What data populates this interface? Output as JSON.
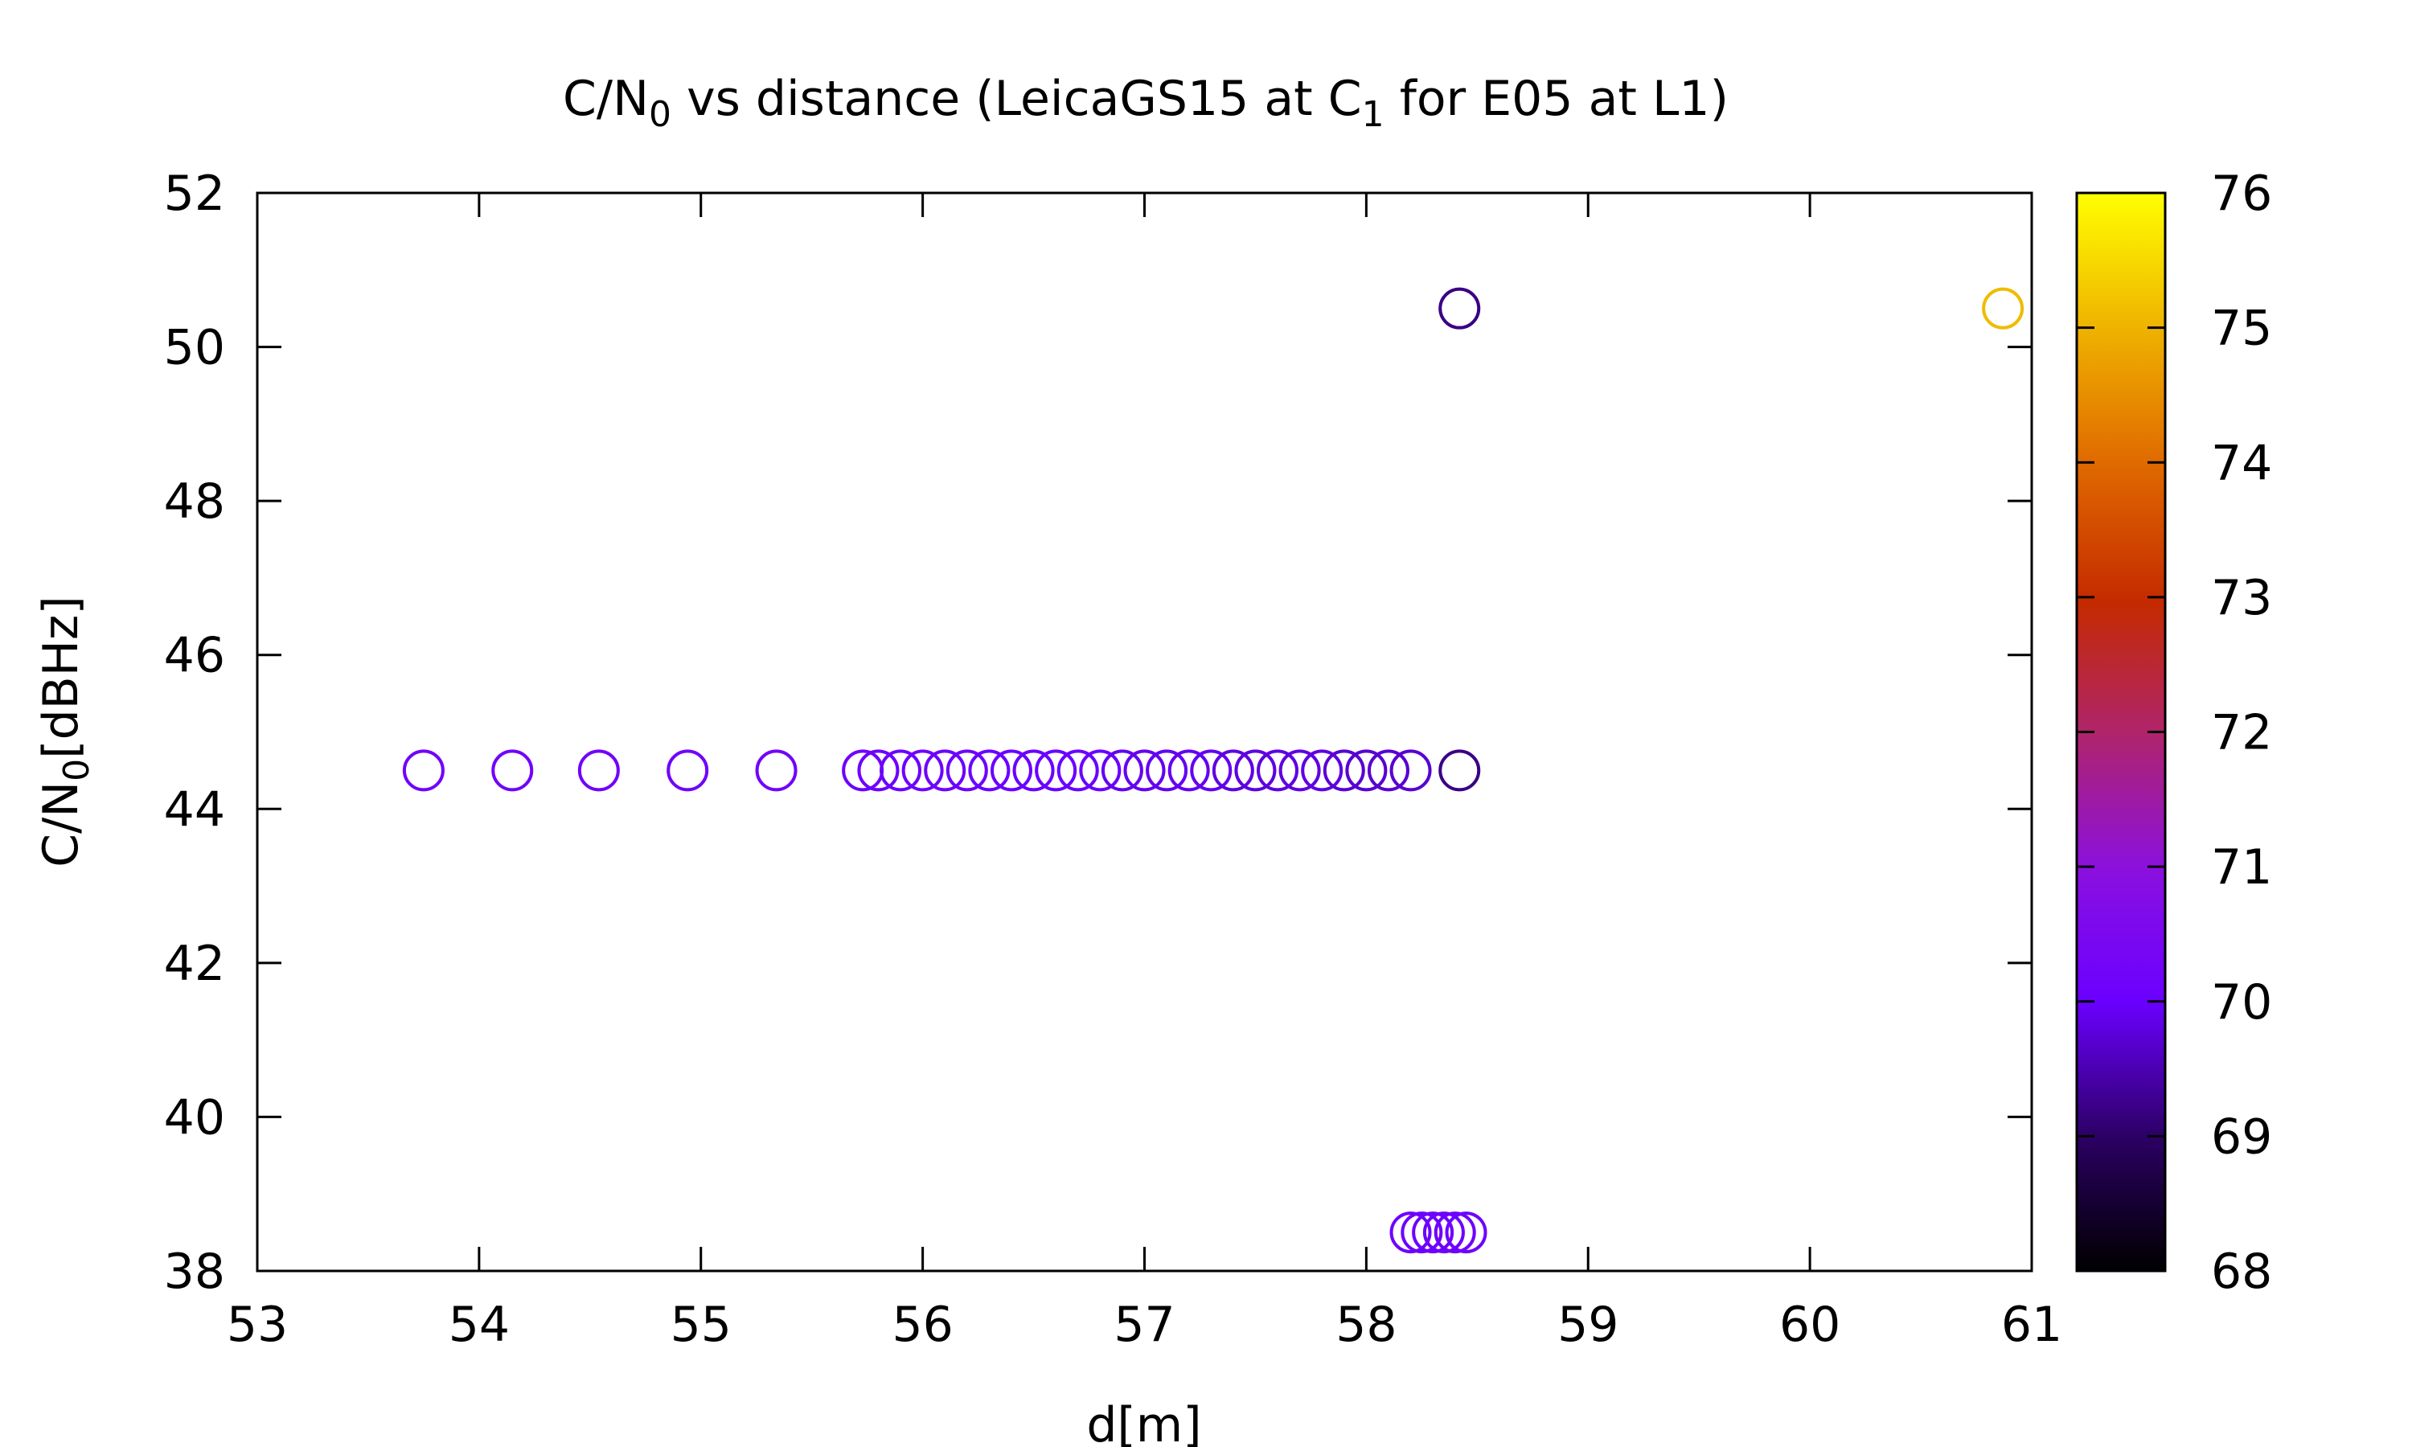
{
  "chart_data": {
    "type": "scatter",
    "title": {
      "prefix": "C/N",
      "sub": "0",
      "middle": " vs distance (LeicaGS15 at C",
      "sub2": "1",
      "suffix": " for E05 at L1)"
    },
    "xlabel": "d[m]",
    "ylabel": {
      "prefix": "C/N",
      "sub": "0",
      "suffix": "[dBHz]"
    },
    "xlim": [
      53,
      61
    ],
    "ylim": [
      38,
      52
    ],
    "x_ticks": [
      53,
      54,
      55,
      56,
      57,
      58,
      59,
      60,
      61
    ],
    "y_ticks": [
      38,
      40,
      42,
      44,
      46,
      48,
      50,
      52
    ],
    "colorbar": {
      "range": [
        68,
        76
      ],
      "ticks": [
        68,
        69,
        70,
        71,
        72,
        73,
        74,
        75,
        76
      ],
      "palette": "black-purple-red-orange-yellow"
    },
    "grid": false,
    "marker": "open-circle",
    "points": [
      {
        "x": 53.75,
        "y": 44.5,
        "c": 70.2
      },
      {
        "x": 54.15,
        "y": 44.5,
        "c": 70.2
      },
      {
        "x": 54.54,
        "y": 44.5,
        "c": 70.2
      },
      {
        "x": 54.94,
        "y": 44.5,
        "c": 70.2
      },
      {
        "x": 55.34,
        "y": 44.5,
        "c": 70.2
      },
      {
        "x": 55.73,
        "y": 44.5,
        "c": 70.1
      },
      {
        "x": 55.8,
        "y": 44.5,
        "c": 70.1
      },
      {
        "x": 55.9,
        "y": 44.5,
        "c": 70.1
      },
      {
        "x": 56.0,
        "y": 44.5,
        "c": 70.1
      },
      {
        "x": 56.1,
        "y": 44.5,
        "c": 70.1
      },
      {
        "x": 56.2,
        "y": 44.5,
        "c": 70.1
      },
      {
        "x": 56.3,
        "y": 44.5,
        "c": 70.0
      },
      {
        "x": 56.4,
        "y": 44.5,
        "c": 70.0
      },
      {
        "x": 56.5,
        "y": 44.5,
        "c": 70.0
      },
      {
        "x": 56.6,
        "y": 44.5,
        "c": 70.0
      },
      {
        "x": 56.7,
        "y": 44.5,
        "c": 70.0
      },
      {
        "x": 56.8,
        "y": 44.5,
        "c": 70.0
      },
      {
        "x": 56.9,
        "y": 44.5,
        "c": 69.9
      },
      {
        "x": 57.0,
        "y": 44.5,
        "c": 69.9
      },
      {
        "x": 57.1,
        "y": 44.5,
        "c": 69.9
      },
      {
        "x": 57.2,
        "y": 44.5,
        "c": 69.9
      },
      {
        "x": 57.3,
        "y": 44.5,
        "c": 69.9
      },
      {
        "x": 57.4,
        "y": 44.5,
        "c": 69.8
      },
      {
        "x": 57.5,
        "y": 44.5,
        "c": 69.8
      },
      {
        "x": 57.6,
        "y": 44.5,
        "c": 69.8
      },
      {
        "x": 57.7,
        "y": 44.5,
        "c": 69.8
      },
      {
        "x": 57.8,
        "y": 44.5,
        "c": 69.8
      },
      {
        "x": 57.9,
        "y": 44.5,
        "c": 69.7
      },
      {
        "x": 58.0,
        "y": 44.5,
        "c": 69.7
      },
      {
        "x": 58.1,
        "y": 44.5,
        "c": 69.7
      },
      {
        "x": 58.2,
        "y": 44.5,
        "c": 69.7
      },
      {
        "x": 58.42,
        "y": 44.5,
        "c": 69.2
      },
      {
        "x": 58.42,
        "y": 50.5,
        "c": 69.2
      },
      {
        "x": 58.2,
        "y": 38.5,
        "c": 70.1
      },
      {
        "x": 58.25,
        "y": 38.5,
        "c": 70.1
      },
      {
        "x": 58.3,
        "y": 38.5,
        "c": 70.1
      },
      {
        "x": 58.35,
        "y": 38.5,
        "c": 70.1
      },
      {
        "x": 58.4,
        "y": 38.5,
        "c": 70.1
      },
      {
        "x": 58.45,
        "y": 38.5,
        "c": 70.1
      },
      {
        "x": 60.87,
        "y": 50.5,
        "c": 75.1
      }
    ]
  }
}
